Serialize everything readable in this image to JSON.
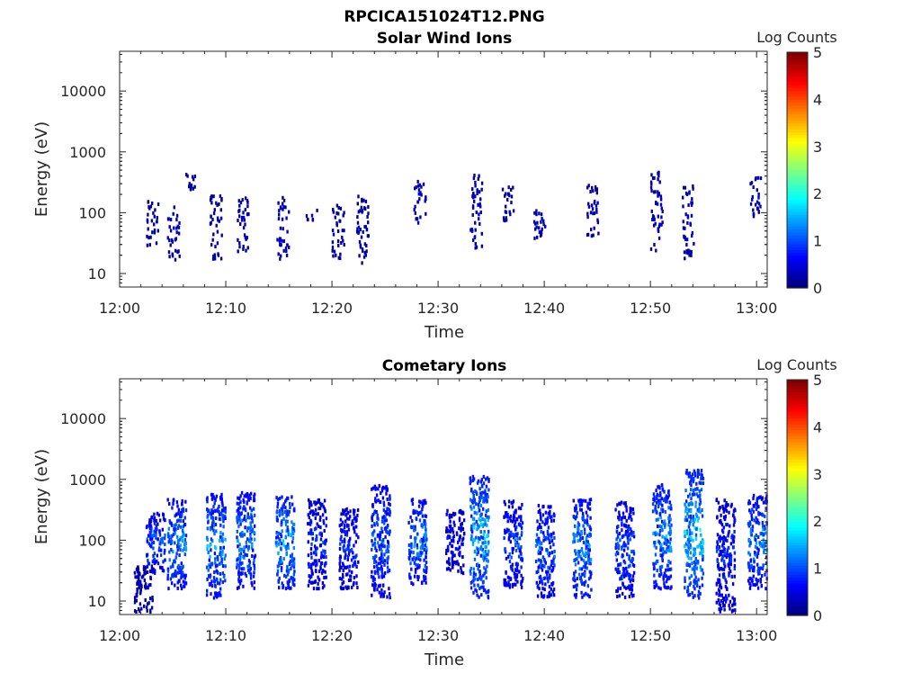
{
  "figure": {
    "title": "RPCICA151024T12.PNG"
  },
  "chart_data": [
    {
      "type": "heatmap",
      "title": "Solar Wind Ions",
      "xlabel": "Time",
      "ylabel": "Energy (eV)",
      "x_range": [
        "12:00",
        "13:01"
      ],
      "y_scale": "log",
      "ylim": [
        6,
        45000
      ],
      "x_ticks": [
        "12:00",
        "12:10",
        "12:20",
        "12:30",
        "12:40",
        "12:50",
        "13:00"
      ],
      "y_ticks": [
        "10",
        "100",
        "1000",
        "10000"
      ],
      "colorbar": {
        "label": "Log Counts",
        "min": 0,
        "max": 5,
        "ticks": [
          "0",
          "1",
          "2",
          "3",
          "4",
          "5"
        ],
        "colormap": "jet"
      },
      "clusters": [
        {
          "t_min": 3.0,
          "e_lo": 30,
          "e_hi": 170,
          "level": 0.3
        },
        {
          "t_min": 5.0,
          "e_lo": 18,
          "e_hi": 140,
          "level": 0.4
        },
        {
          "t_min": 6.5,
          "e_lo": 220,
          "e_hi": 480,
          "level": 0.3
        },
        {
          "t_min": 9.0,
          "e_lo": 18,
          "e_hi": 200,
          "level": 0.4
        },
        {
          "t_min": 11.5,
          "e_lo": 22,
          "e_hi": 200,
          "level": 0.4
        },
        {
          "t_min": 15.3,
          "e_lo": 18,
          "e_hi": 190,
          "level": 0.5
        },
        {
          "t_min": 18.0,
          "e_lo": 80,
          "e_hi": 120,
          "level": 0.3
        },
        {
          "t_min": 20.5,
          "e_lo": 18,
          "e_hi": 140,
          "level": 0.3
        },
        {
          "t_min": 22.8,
          "e_lo": 12,
          "e_hi": 200,
          "level": 0.3
        },
        {
          "t_min": 28.2,
          "e_lo": 70,
          "e_hi": 350,
          "level": 0.5
        },
        {
          "t_min": 33.5,
          "e_lo": 28,
          "e_hi": 450,
          "level": 0.5
        },
        {
          "t_min": 36.5,
          "e_lo": 70,
          "e_hi": 280,
          "level": 0.3
        },
        {
          "t_min": 39.5,
          "e_lo": 30,
          "e_hi": 120,
          "level": 0.4
        },
        {
          "t_min": 44.5,
          "e_lo": 40,
          "e_hi": 300,
          "level": 0.3
        },
        {
          "t_min": 50.5,
          "e_lo": 25,
          "e_hi": 500,
          "level": 0.4
        },
        {
          "t_min": 53.5,
          "e_lo": 18,
          "e_hi": 300,
          "level": 0.5
        },
        {
          "t_min": 59.8,
          "e_lo": 90,
          "e_hi": 400,
          "level": 0.4
        }
      ]
    },
    {
      "type": "heatmap",
      "title": "Cometary Ions",
      "xlabel": "Time",
      "ylabel": "Energy (eV)",
      "x_range": [
        "12:00",
        "13:01"
      ],
      "y_scale": "log",
      "ylim": [
        6,
        45000
      ],
      "x_ticks": [
        "12:00",
        "12:10",
        "12:20",
        "12:30",
        "12:40",
        "12:50",
        "13:00"
      ],
      "y_ticks": [
        "10",
        "100",
        "1000",
        "10000"
      ],
      "colorbar": {
        "label": "Log Counts",
        "min": 0,
        "max": 5,
        "ticks": [
          "0",
          "1",
          "2",
          "3",
          "4",
          "5"
        ],
        "colormap": "jet"
      },
      "clusters": [
        {
          "t_min": 2.2,
          "e_lo": 7,
          "e_hi": 40,
          "level": 0.4
        },
        {
          "t_min": 3.3,
          "e_lo": 30,
          "e_hi": 300,
          "level": 1.3
        },
        {
          "t_min": 5.3,
          "e_lo": 17,
          "e_hi": 500,
          "level": 1.5
        },
        {
          "t_min": 9.0,
          "e_lo": 12,
          "e_hi": 600,
          "level": 1.6
        },
        {
          "t_min": 11.8,
          "e_lo": 17,
          "e_hi": 650,
          "level": 1.5
        },
        {
          "t_min": 15.5,
          "e_lo": 17,
          "e_hi": 600,
          "level": 1.7
        },
        {
          "t_min": 18.5,
          "e_lo": 17,
          "e_hi": 500,
          "level": 1.0
        },
        {
          "t_min": 21.5,
          "e_lo": 17,
          "e_hi": 350,
          "level": 1.0
        },
        {
          "t_min": 24.5,
          "e_lo": 12,
          "e_hi": 900,
          "level": 1.3
        },
        {
          "t_min": 28.0,
          "e_lo": 20,
          "e_hi": 500,
          "level": 1.5
        },
        {
          "t_min": 31.5,
          "e_lo": 30,
          "e_hi": 350,
          "level": 0.8
        },
        {
          "t_min": 33.8,
          "e_lo": 12,
          "e_hi": 1200,
          "level": 1.8
        },
        {
          "t_min": 37.0,
          "e_lo": 17,
          "e_hi": 500,
          "level": 1.2
        },
        {
          "t_min": 40.0,
          "e_lo": 12,
          "e_hi": 400,
          "level": 1.3
        },
        {
          "t_min": 43.5,
          "e_lo": 12,
          "e_hi": 500,
          "level": 1.6
        },
        {
          "t_min": 47.5,
          "e_lo": 12,
          "e_hi": 450,
          "level": 1.2
        },
        {
          "t_min": 51.0,
          "e_lo": 17,
          "e_hi": 900,
          "level": 1.6
        },
        {
          "t_min": 54.0,
          "e_lo": 12,
          "e_hi": 1500,
          "level": 1.9
        },
        {
          "t_min": 57.0,
          "e_lo": 7,
          "e_hi": 500,
          "level": 1.0
        },
        {
          "t_min": 60.0,
          "e_lo": 17,
          "e_hi": 600,
          "level": 1.5
        }
      ]
    }
  ]
}
